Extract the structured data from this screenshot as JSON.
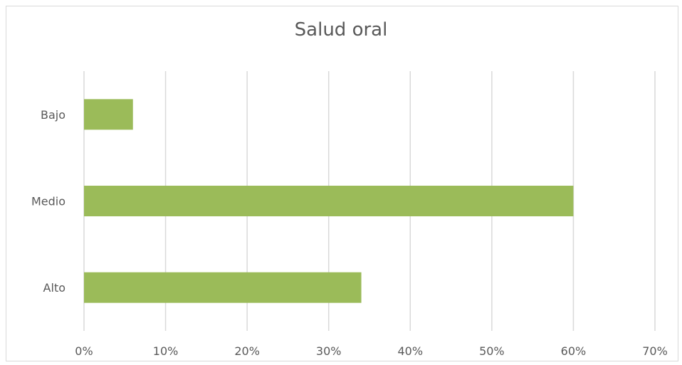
{
  "chart_data": {
    "type": "bar",
    "orientation": "horizontal",
    "title": "Salud oral",
    "categories": [
      "Bajo",
      "Medio",
      "Alto"
    ],
    "values": [
      6,
      60,
      34
    ],
    "unit": "%",
    "xlim": [
      0,
      70
    ],
    "xticks": [
      "0%",
      "10%",
      "20%",
      "30%",
      "40%",
      "50%",
      "60%",
      "70%"
    ],
    "xlabel": "",
    "ylabel": "",
    "grid": "vertical",
    "legend": "none",
    "bar_color": "#9bbb59",
    "grid_color": "#d9d9d9"
  }
}
